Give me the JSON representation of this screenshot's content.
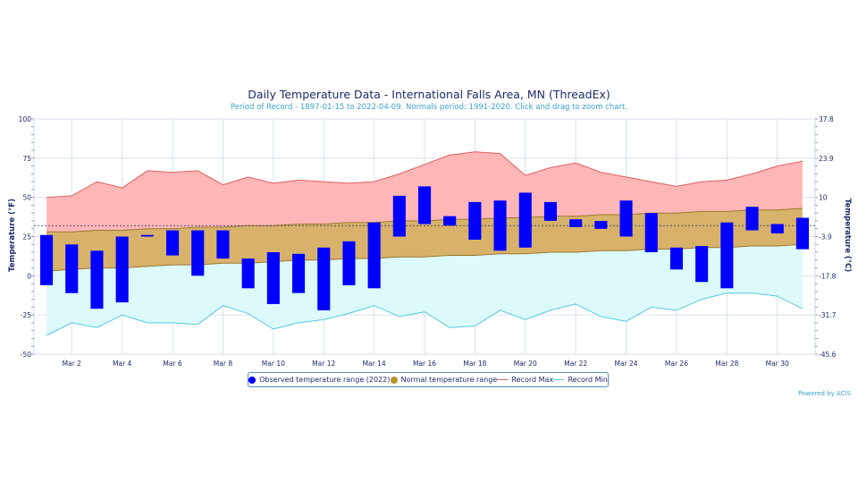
{
  "chart_data": {
    "type": "bar",
    "title": "Daily Temperature Data - International Falls Area, MN (ThreadEx)",
    "subtitle": "Period of Record - 1897-01-15 to 2022-04-09. Normals period: 1991-2020. Click and drag to zoom chart.",
    "ylabel_left": "Temperature (°F)",
    "ylabel_right": "Temperature (°C)",
    "ylim": [
      -50,
      100
    ],
    "y_ticks_left": [
      "100",
      "75",
      "50",
      "25",
      "0",
      "-25",
      "-50"
    ],
    "y_ticks_right": [
      "37.8",
      "23.9",
      "10",
      "-3.9",
      "-17.8",
      "-31.7",
      "-45.6"
    ],
    "x_ticks": [
      "Mar 2",
      "Mar 4",
      "Mar 6",
      "Mar 8",
      "Mar 10",
      "Mar 12",
      "Mar 14",
      "Mar 16",
      "Mar 18",
      "Mar 20",
      "Mar 22",
      "Mar 24",
      "Mar 26",
      "Mar 28",
      "Mar 30"
    ],
    "days": [
      1,
      2,
      3,
      4,
      5,
      6,
      7,
      8,
      9,
      10,
      11,
      12,
      13,
      14,
      15,
      16,
      17,
      18,
      19,
      20,
      21,
      22,
      23,
      24,
      25,
      26,
      27,
      28,
      29,
      30,
      31
    ],
    "series": [
      {
        "name": "Observed temperature range (2022)",
        "color": "#0000ff",
        "low": [
          -6,
          -11,
          -21,
          -17,
          25,
          13,
          0,
          11,
          -8,
          -18,
          -11,
          -22,
          -6,
          -8,
          25,
          33,
          32,
          23,
          16,
          18,
          35,
          31,
          30,
          25,
          15,
          4,
          -4,
          -8,
          29,
          27,
          17
        ],
        "high": [
          26,
          20,
          16,
          25,
          26,
          29,
          29,
          29,
          11,
          15,
          14,
          18,
          22,
          34,
          51,
          57,
          38,
          47,
          48,
          53,
          47,
          36,
          35,
          48,
          40,
          18,
          19,
          34,
          44,
          33,
          37
        ]
      },
      {
        "name": "Normal temperature range",
        "color": "#b8922f",
        "low": [
          3,
          4,
          5,
          5,
          6,
          7,
          7,
          8,
          8,
          9,
          10,
          10,
          11,
          11,
          12,
          12,
          13,
          13,
          14,
          14,
          15,
          15,
          16,
          16,
          17,
          17,
          18,
          18,
          19,
          19,
          20
        ],
        "high": [
          28,
          28,
          29,
          29,
          30,
          30,
          31,
          31,
          32,
          32,
          33,
          33,
          34,
          34,
          35,
          35,
          36,
          36,
          37,
          37,
          38,
          38,
          39,
          39,
          40,
          40,
          41,
          41,
          42,
          42,
          43
        ]
      },
      {
        "name": "Record Max",
        "color": "#e06060",
        "values": [
          50,
          51,
          60,
          56,
          67,
          66,
          67,
          58,
          63,
          59,
          61,
          60,
          59,
          60,
          65,
          71,
          77,
          79,
          78,
          64,
          69,
          72,
          66,
          63,
          60,
          57,
          60,
          61,
          65,
          70,
          73
        ]
      },
      {
        "name": "Record Min",
        "color": "#5ac8dc",
        "values": [
          -38,
          -30,
          -33,
          -25,
          -30,
          -30,
          -31,
          -19,
          -24,
          -34,
          -30,
          -28,
          -24,
          -19,
          -26,
          -23,
          -33,
          -32,
          -22,
          -28,
          -22,
          -18,
          -26,
          -29,
          -20,
          -22,
          -15,
          -11,
          -11,
          -13,
          -21
        ]
      }
    ],
    "normal_line_value": 32,
    "legend_placement": "bottom",
    "grid": true
  },
  "powered_by": "Powered by ACIS"
}
